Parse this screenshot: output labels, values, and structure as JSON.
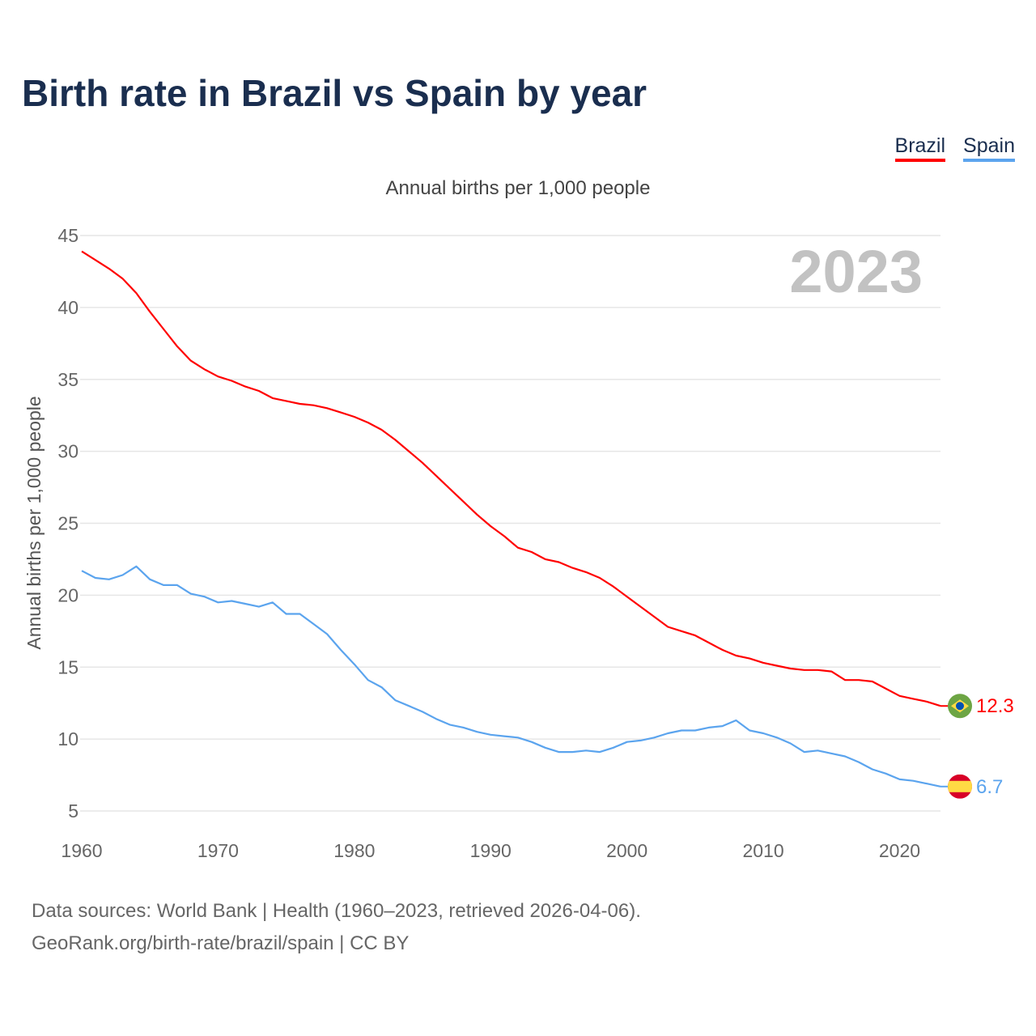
{
  "title": "Birth rate in Brazil vs Spain by year",
  "footer": {
    "line1": "Data sources: World Bank | Health (1960–2023, retrieved 2026-04-06).",
    "line2": "GeoRank.org/birth-rate/brazil/spain | CC BY"
  },
  "chart_data": {
    "type": "line",
    "title": "Birth rate in Brazil vs Spain by year",
    "subtitle": "Annual births per 1,000 people",
    "xlabel": "",
    "ylabel": "Annual births per 1,000 people",
    "year_label": "2023",
    "xlim": [
      1960,
      2023
    ],
    "ylim": [
      5,
      45
    ],
    "x_ticks": [
      "1960",
      "1970",
      "1980",
      "1990",
      "2000",
      "2010",
      "2020"
    ],
    "y_ticks": [
      "5",
      "10",
      "15",
      "20",
      "25",
      "30",
      "35",
      "40",
      "45"
    ],
    "grid": true,
    "legend_position": "top-right",
    "x": [
      1960,
      1961,
      1962,
      1963,
      1964,
      1965,
      1966,
      1967,
      1968,
      1969,
      1970,
      1971,
      1972,
      1973,
      1974,
      1975,
      1976,
      1977,
      1978,
      1979,
      1980,
      1981,
      1982,
      1983,
      1984,
      1985,
      1986,
      1987,
      1988,
      1989,
      1990,
      1991,
      1992,
      1993,
      1994,
      1995,
      1996,
      1997,
      1998,
      1999,
      2000,
      2001,
      2002,
      2003,
      2004,
      2005,
      2006,
      2007,
      2008,
      2009,
      2010,
      2011,
      2012,
      2013,
      2014,
      2015,
      2016,
      2017,
      2018,
      2019,
      2020,
      2021,
      2022,
      2023
    ],
    "series": [
      {
        "name": "Brazil",
        "color": "#ff0000",
        "end_label": "12.3",
        "flag": "brazil-flag",
        "values": [
          43.9,
          43.3,
          42.7,
          42.0,
          41.0,
          39.7,
          38.5,
          37.3,
          36.3,
          35.7,
          35.2,
          34.9,
          34.5,
          34.2,
          33.7,
          33.5,
          33.3,
          33.2,
          33.0,
          32.7,
          32.4,
          32.0,
          31.5,
          30.8,
          30.0,
          29.2,
          28.3,
          27.4,
          26.5,
          25.6,
          24.8,
          24.1,
          23.3,
          23.0,
          22.5,
          22.3,
          21.9,
          21.6,
          21.2,
          20.6,
          19.9,
          19.2,
          18.5,
          17.8,
          17.5,
          17.2,
          16.7,
          16.2,
          15.8,
          15.6,
          15.3,
          15.1,
          14.9,
          14.8,
          14.8,
          14.7,
          14.1,
          14.1,
          14.0,
          13.5,
          13.0,
          12.8,
          12.6,
          12.3
        ]
      },
      {
        "name": "Spain",
        "color": "#5ba4ee",
        "end_label": "6.7",
        "flag": "spain-flag",
        "values": [
          21.7,
          21.2,
          21.1,
          21.4,
          22.0,
          21.1,
          20.7,
          20.7,
          20.1,
          19.9,
          19.5,
          19.6,
          19.4,
          19.2,
          19.5,
          18.7,
          18.7,
          18.0,
          17.3,
          16.2,
          15.2,
          14.1,
          13.6,
          12.7,
          12.3,
          11.9,
          11.4,
          11.0,
          10.8,
          10.5,
          10.3,
          10.2,
          10.1,
          9.8,
          9.4,
          9.1,
          9.1,
          9.2,
          9.1,
          9.4,
          9.8,
          9.9,
          10.1,
          10.4,
          10.6,
          10.6,
          10.8,
          10.9,
          11.3,
          10.6,
          10.4,
          10.1,
          9.7,
          9.1,
          9.2,
          9.0,
          8.8,
          8.4,
          7.9,
          7.6,
          7.2,
          7.1,
          6.9,
          6.7
        ]
      }
    ]
  }
}
